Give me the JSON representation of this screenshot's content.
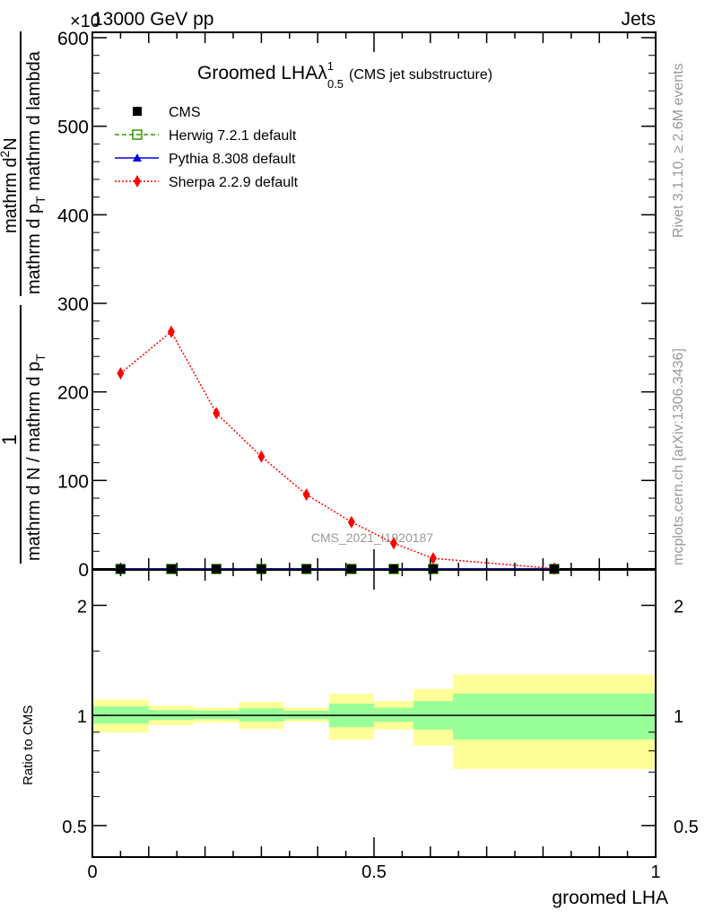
{
  "header": {
    "left": "13000 GeV pp",
    "right": "Jets",
    "exponent_label": "×10^3"
  },
  "side_labels": {
    "rivet": "Rivet 3.1.10, ≥ 2.6M events",
    "mcplots": "mcplots.cern.ch [arXiv:1306.3436]"
  },
  "watermark": "CMS_2021_I1920187",
  "chart_data": [
    {
      "type": "line",
      "title": "Groomed LHA",
      "title_symbol": "λ",
      "title_sup": "1",
      "title_sub": "0.5",
      "subtitle": "(CMS jet substructure)",
      "ylabel_parts": {
        "num1": "1",
        "den1": "mathrm d N / mathrm d p",
        "den1_sub": "T",
        "num2": "mathrm d",
        "num2_sup": "2",
        "num2_tail": "N",
        "den2": "mathrm d p",
        "den2_sub": "T",
        "den2_tail": "mathrm d lambda"
      },
      "xlim": [
        0,
        1
      ],
      "ylim": [
        0,
        600
      ],
      "yticks": [
        0,
        100,
        200,
        300,
        400,
        500,
        600
      ],
      "ytick_labels": [
        "0",
        "100",
        "200",
        "300",
        "400",
        "500",
        "600"
      ],
      "legend_position": "top-left",
      "x": [
        0.05,
        0.14,
        0.22,
        0.3,
        0.38,
        0.46,
        0.535,
        0.605,
        0.82
      ],
      "series": [
        {
          "name": "CMS",
          "color": "#000000",
          "marker": "square",
          "values": [
            0,
            0,
            0,
            0,
            0,
            0,
            0,
            0,
            0
          ]
        },
        {
          "name": "Herwig 7.2.1 default",
          "color": "#339900",
          "marker": "open-square",
          "line": "dashed",
          "values": [
            0,
            0,
            0,
            0,
            0,
            0,
            0,
            0,
            0
          ]
        },
        {
          "name": "Pythia 8.308 default",
          "color": "#0000ee",
          "marker": "triangle",
          "line": "solid",
          "values": [
            0,
            0,
            0,
            0,
            0,
            0,
            0,
            0,
            0
          ]
        },
        {
          "name": "Sherpa 2.2.9 default",
          "color": "#ff0000",
          "marker": "diamond",
          "line": "dotted",
          "values": [
            221,
            268,
            176,
            127,
            84,
            53,
            29,
            12,
            0.5
          ]
        }
      ]
    },
    {
      "type": "area",
      "ylabel": "Ratio to CMS",
      "xlabel": "groomed LHA",
      "yscale": "log",
      "ylim": [
        0.41,
        2.5
      ],
      "yticks": [
        0.5,
        1,
        2
      ],
      "ytick_labels": [
        "0.5",
        "1",
        "2"
      ],
      "xticks": [
        0,
        0.5,
        1
      ],
      "xtick_labels": [
        "0",
        "0.5",
        "1"
      ],
      "bin_edges": [
        0,
        0.1,
        0.18,
        0.26,
        0.34,
        0.42,
        0.5,
        0.57,
        0.64,
        1.0
      ],
      "band_outer": {
        "color": "#ffff99",
        "low": [
          0.898,
          0.94,
          0.955,
          0.918,
          0.96,
          0.859,
          0.915,
          0.827,
          0.714
        ],
        "high": [
          1.105,
          1.064,
          1.05,
          1.089,
          1.05,
          1.146,
          1.095,
          1.181,
          1.293
        ]
      },
      "band_inner": {
        "color": "#99ff99",
        "low": [
          0.95,
          0.972,
          0.977,
          0.963,
          0.977,
          0.929,
          0.96,
          0.915,
          0.859
        ],
        "high": [
          1.058,
          1.035,
          1.03,
          1.046,
          1.03,
          1.077,
          1.05,
          1.095,
          1.148
        ]
      }
    }
  ]
}
